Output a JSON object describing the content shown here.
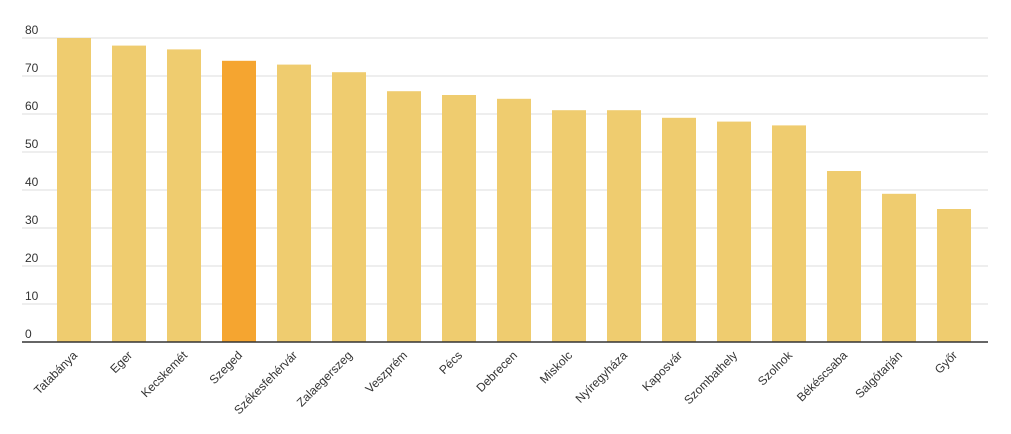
{
  "chart_data": {
    "type": "bar",
    "categories": [
      "Tatabánya",
      "Eger",
      "Kecskemét",
      "Szeged",
      "Székesfehérvár",
      "Zalaegerszeg",
      "Veszprém",
      "Pécs",
      "Debrecen",
      "Miskolc",
      "Nyíregyháza",
      "Kaposvár",
      "Szombathely",
      "Szolnok",
      "Békéscsaba",
      "Salgótarján",
      "Győr"
    ],
    "values": [
      80,
      78,
      77,
      74,
      73,
      71,
      66,
      65,
      64,
      61,
      61,
      59,
      58,
      57,
      45,
      39,
      35
    ],
    "colors": [
      "#efcc6f",
      "#efcc6f",
      "#efcc6f",
      "#f5a530",
      "#efcc6f",
      "#efcc6f",
      "#efcc6f",
      "#efcc6f",
      "#efcc6f",
      "#efcc6f",
      "#efcc6f",
      "#efcc6f",
      "#efcc6f",
      "#efcc6f",
      "#efcc6f",
      "#efcc6f",
      "#efcc6f"
    ],
    "ylim": [
      0,
      80
    ],
    "yticks": [
      0,
      10,
      20,
      30,
      40,
      50,
      60,
      70,
      80
    ],
    "grid": true
  }
}
